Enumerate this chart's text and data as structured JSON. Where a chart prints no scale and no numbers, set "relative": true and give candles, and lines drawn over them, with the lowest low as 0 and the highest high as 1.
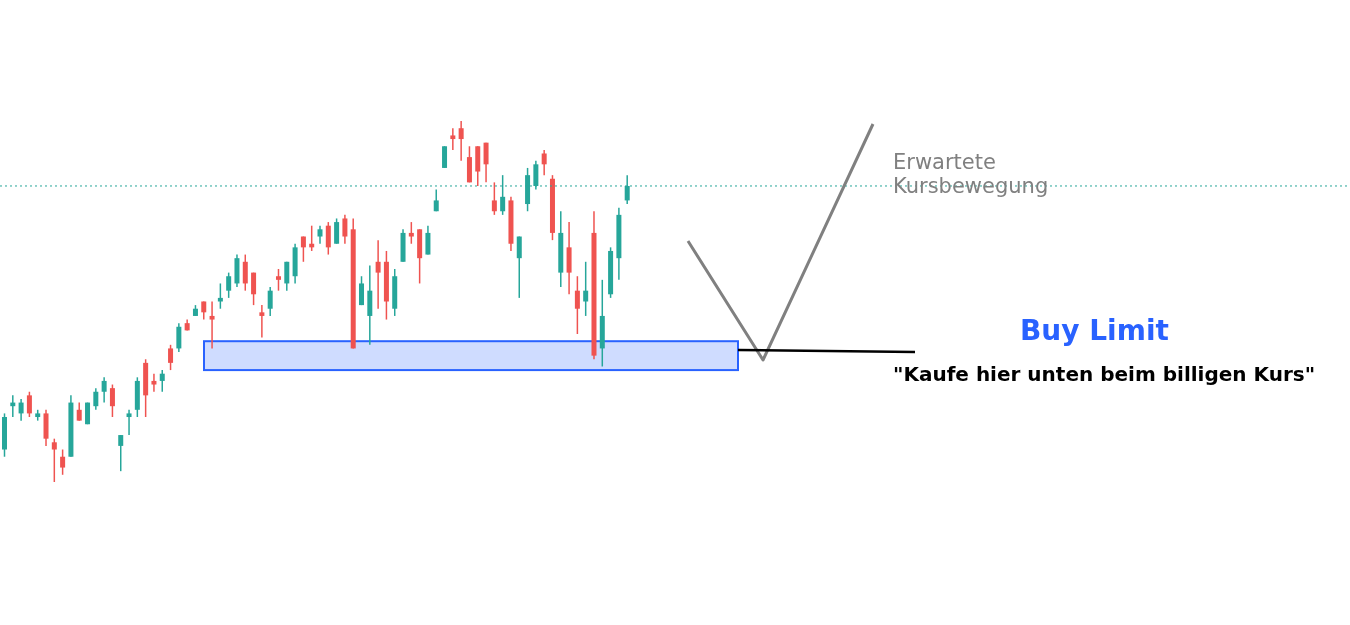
{
  "chart_data": {
    "type": "candlestick",
    "relative": true,
    "categories": [
      null,
      null,
      null,
      null,
      null,
      null,
      null,
      null,
      null,
      null,
      null,
      null,
      null,
      null,
      null,
      null,
      null,
      null,
      null,
      null,
      null,
      null,
      null,
      null,
      null,
      null,
      null,
      null,
      null,
      null,
      null,
      null,
      null,
      null,
      null,
      null,
      null,
      null,
      null,
      null,
      null,
      null,
      null,
      null,
      null,
      null,
      null,
      null,
      null,
      null,
      null,
      null,
      null,
      null,
      null,
      null,
      null,
      null,
      null,
      null,
      null,
      null,
      null,
      null,
      null,
      null,
      null,
      null,
      null,
      null,
      null,
      null,
      null,
      null,
      null,
      null
    ],
    "ohlc": [
      [
        0.09,
        0.19,
        0.07,
        0.18
      ],
      [
        0.21,
        0.24,
        0.18,
        0.22
      ],
      [
        0.19,
        0.23,
        0.17,
        0.22
      ],
      [
        0.24,
        0.25,
        0.18,
        0.19
      ],
      [
        0.18,
        0.2,
        0.17,
        0.19
      ],
      [
        0.19,
        0.2,
        0.1,
        0.12
      ],
      [
        0.11,
        0.12,
        0,
        0.09
      ],
      [
        0.07,
        0.09,
        0.02,
        0.04
      ],
      [
        0.07,
        0.24,
        0.07,
        0.22
      ],
      [
        0.2,
        0.22,
        0.17,
        0.17
      ],
      [
        0.16,
        0.22,
        0.16,
        0.22
      ],
      [
        0.21,
        0.26,
        0.2,
        0.25
      ],
      [
        0.25,
        0.29,
        0.22,
        0.28
      ],
      [
        0.26,
        0.27,
        0.18,
        0.21
      ],
      [
        0.1,
        0.13,
        0.03,
        0.13
      ],
      [
        0.18,
        0.2,
        0.13,
        0.19
      ],
      [
        0.2,
        0.29,
        0.18,
        0.28
      ],
      [
        0.33,
        0.34,
        0.18,
        0.24
      ],
      [
        0.28,
        0.3,
        0.25,
        0.27
      ],
      [
        0.28,
        0.31,
        0.25,
        0.3
      ],
      [
        0.37,
        0.38,
        0.31,
        0.33
      ],
      [
        0.37,
        0.44,
        0.36,
        0.43
      ],
      [
        0.44,
        0.45,
        0.42,
        0.42
      ],
      [
        0.46,
        0.49,
        0.46,
        0.48
      ],
      [
        0.5,
        0.5,
        0.45,
        0.47
      ],
      [
        0.46,
        0.5,
        0.37,
        0.45
      ],
      [
        0.5,
        0.55,
        0.48,
        0.51
      ],
      [
        0.53,
        0.58,
        0.51,
        0.57
      ],
      [
        0.55,
        0.63,
        0.54,
        0.62
      ],
      [
        0.61,
        0.63,
        0.53,
        0.55
      ],
      [
        0.58,
        0.58,
        0.49,
        0.52
      ],
      [
        0.47,
        0.49,
        0.4,
        0.46
      ],
      [
        0.48,
        0.54,
        0.46,
        0.53
      ],
      [
        0.57,
        0.59,
        0.53,
        0.56
      ],
      [
        0.55,
        0.61,
        0.53,
        0.61
      ],
      [
        0.57,
        0.66,
        0.55,
        0.65
      ],
      [
        0.68,
        0.68,
        0.61,
        0.65
      ],
      [
        0.66,
        0.71,
        0.64,
        0.65
      ],
      [
        0.68,
        0.71,
        0.66,
        0.7
      ],
      [
        0.71,
        0.72,
        0.63,
        0.65
      ],
      [
        0.66,
        0.73,
        0.66,
        0.72
      ],
      [
        0.73,
        0.74,
        0.66,
        0.68
      ],
      [
        0.7,
        0.73,
        0.37,
        0.37
      ],
      [
        0.49,
        0.57,
        0.49,
        0.55
      ],
      [
        0.46,
        0.6,
        0.38,
        0.53
      ],
      [
        0.61,
        0.67,
        0.48,
        0.58
      ],
      [
        0.61,
        0.64,
        0.45,
        0.5
      ],
      [
        0.48,
        0.59,
        0.46,
        0.57
      ],
      [
        0.61,
        0.7,
        0.61,
        0.69
      ],
      [
        0.69,
        0.72,
        0.66,
        0.68
      ],
      [
        0.7,
        0.7,
        0.55,
        0.62
      ],
      [
        0.63,
        0.71,
        0.63,
        0.69
      ],
      [
        0.75,
        0.81,
        0.75,
        0.78
      ],
      [
        0.87,
        0.93,
        0.87,
        0.93
      ],
      [
        0.96,
        0.98,
        0.92,
        0.95
      ],
      [
        0.98,
        1,
        0.89,
        0.95
      ],
      [
        0.9,
        0.93,
        0.83,
        0.83
      ],
      [
        0.93,
        0.93,
        0.82,
        0.86
      ],
      [
        0.94,
        0.94,
        0.83,
        0.88
      ],
      [
        0.78,
        0.83,
        0.74,
        0.75
      ],
      [
        0.75,
        0.85,
        0.74,
        0.79
      ],
      [
        0.78,
        0.79,
        0.64,
        0.66
      ],
      [
        0.62,
        0.68,
        0.51,
        0.68
      ],
      [
        0.77,
        0.87,
        0.75,
        0.85
      ],
      [
        0.82,
        0.89,
        0.81,
        0.88
      ],
      [
        0.91,
        0.92,
        0.85,
        0.88
      ],
      [
        0.84,
        0.85,
        0.67,
        0.69
      ],
      [
        0.58,
        0.75,
        0.54,
        0.69
      ],
      [
        0.65,
        0.72,
        0.52,
        0.58
      ],
      [
        0.53,
        0.57,
        0.41,
        0.48
      ],
      [
        0.5,
        0.61,
        0.46,
        0.53
      ],
      [
        0.69,
        0.75,
        0.34,
        0.35
      ],
      [
        0.37,
        0.56,
        0.32,
        0.46
      ],
      [
        0.52,
        0.65,
        0.51,
        0.64
      ],
      [
        0.62,
        0.76,
        0.56,
        0.74
      ],
      [
        0.78,
        0.85,
        0.77,
        0.82
      ]
    ],
    "ref_lines": [
      {
        "axis": "y",
        "value": 0.82,
        "color": "#26a69a",
        "line_style": "dotted"
      }
    ],
    "bands": [
      {
        "axis": "y",
        "from": 0.31,
        "to": 0.39,
        "color": "#cfdcff"
      }
    ],
    "annotations": [
      "Erwartete Kursbewegung",
      "Buy Limit",
      "\"Kaufe hier unten beim billigen Kurs\""
    ]
  }
}
